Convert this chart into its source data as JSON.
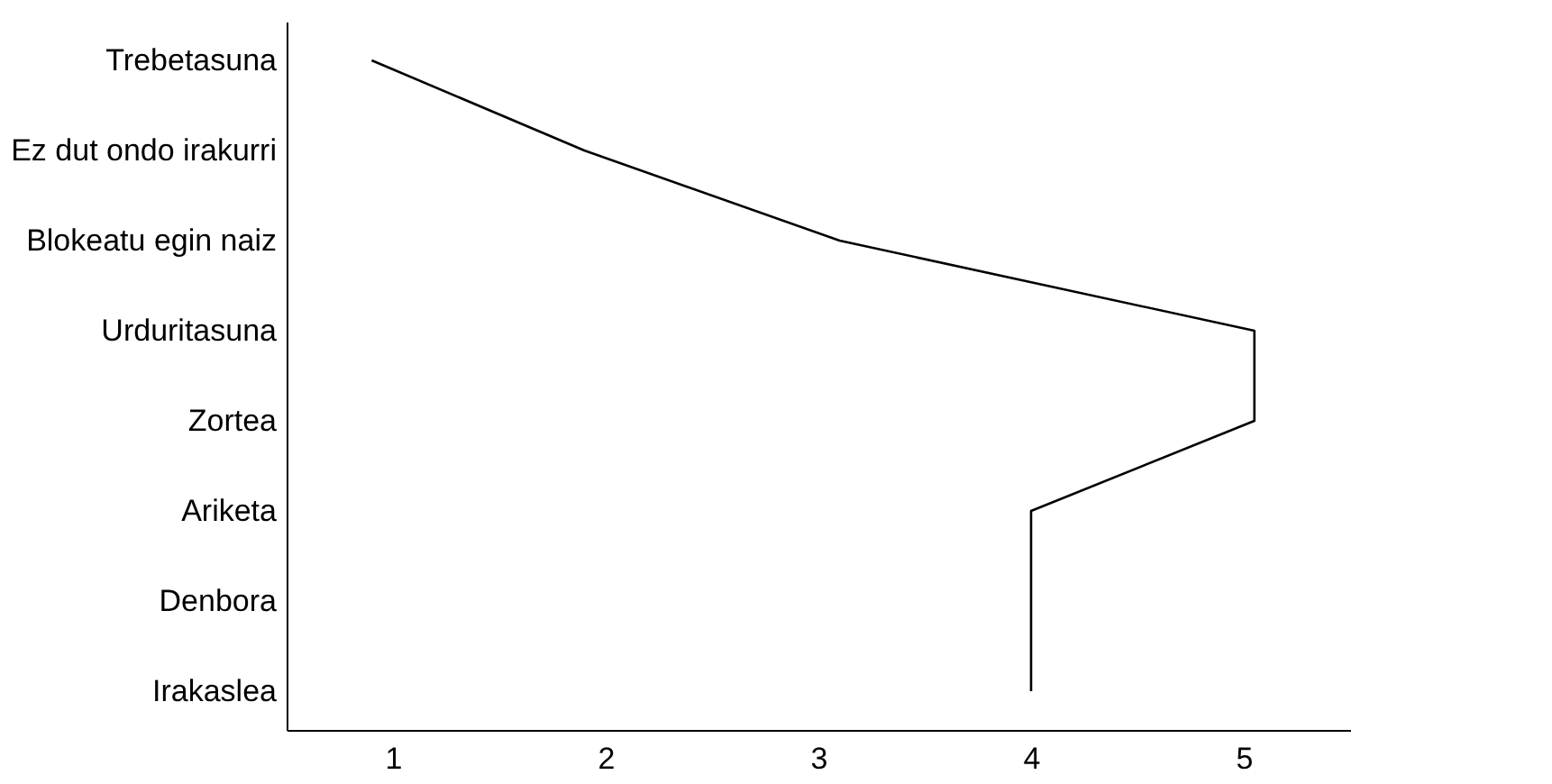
{
  "chart_data": {
    "type": "line",
    "orientation": "horizontal",
    "categories": [
      "Trebetasuna",
      "Ez dut ondo irakurri",
      "Blokeatu egin naiz",
      "Urduritasuna",
      "Zortea",
      "Ariketa",
      "Denbora",
      "Irakaslea"
    ],
    "series": [
      {
        "color": "#000000",
        "values": [
          0.9,
          1.9,
          3.1,
          5.05,
          5.05,
          4,
          4,
          4
        ]
      }
    ],
    "xlim": [
      0.5,
      5.5
    ],
    "xticks": [
      1,
      2,
      3,
      4,
      5
    ],
    "grid": false,
    "marker": "none",
    "line_style": "solid"
  }
}
